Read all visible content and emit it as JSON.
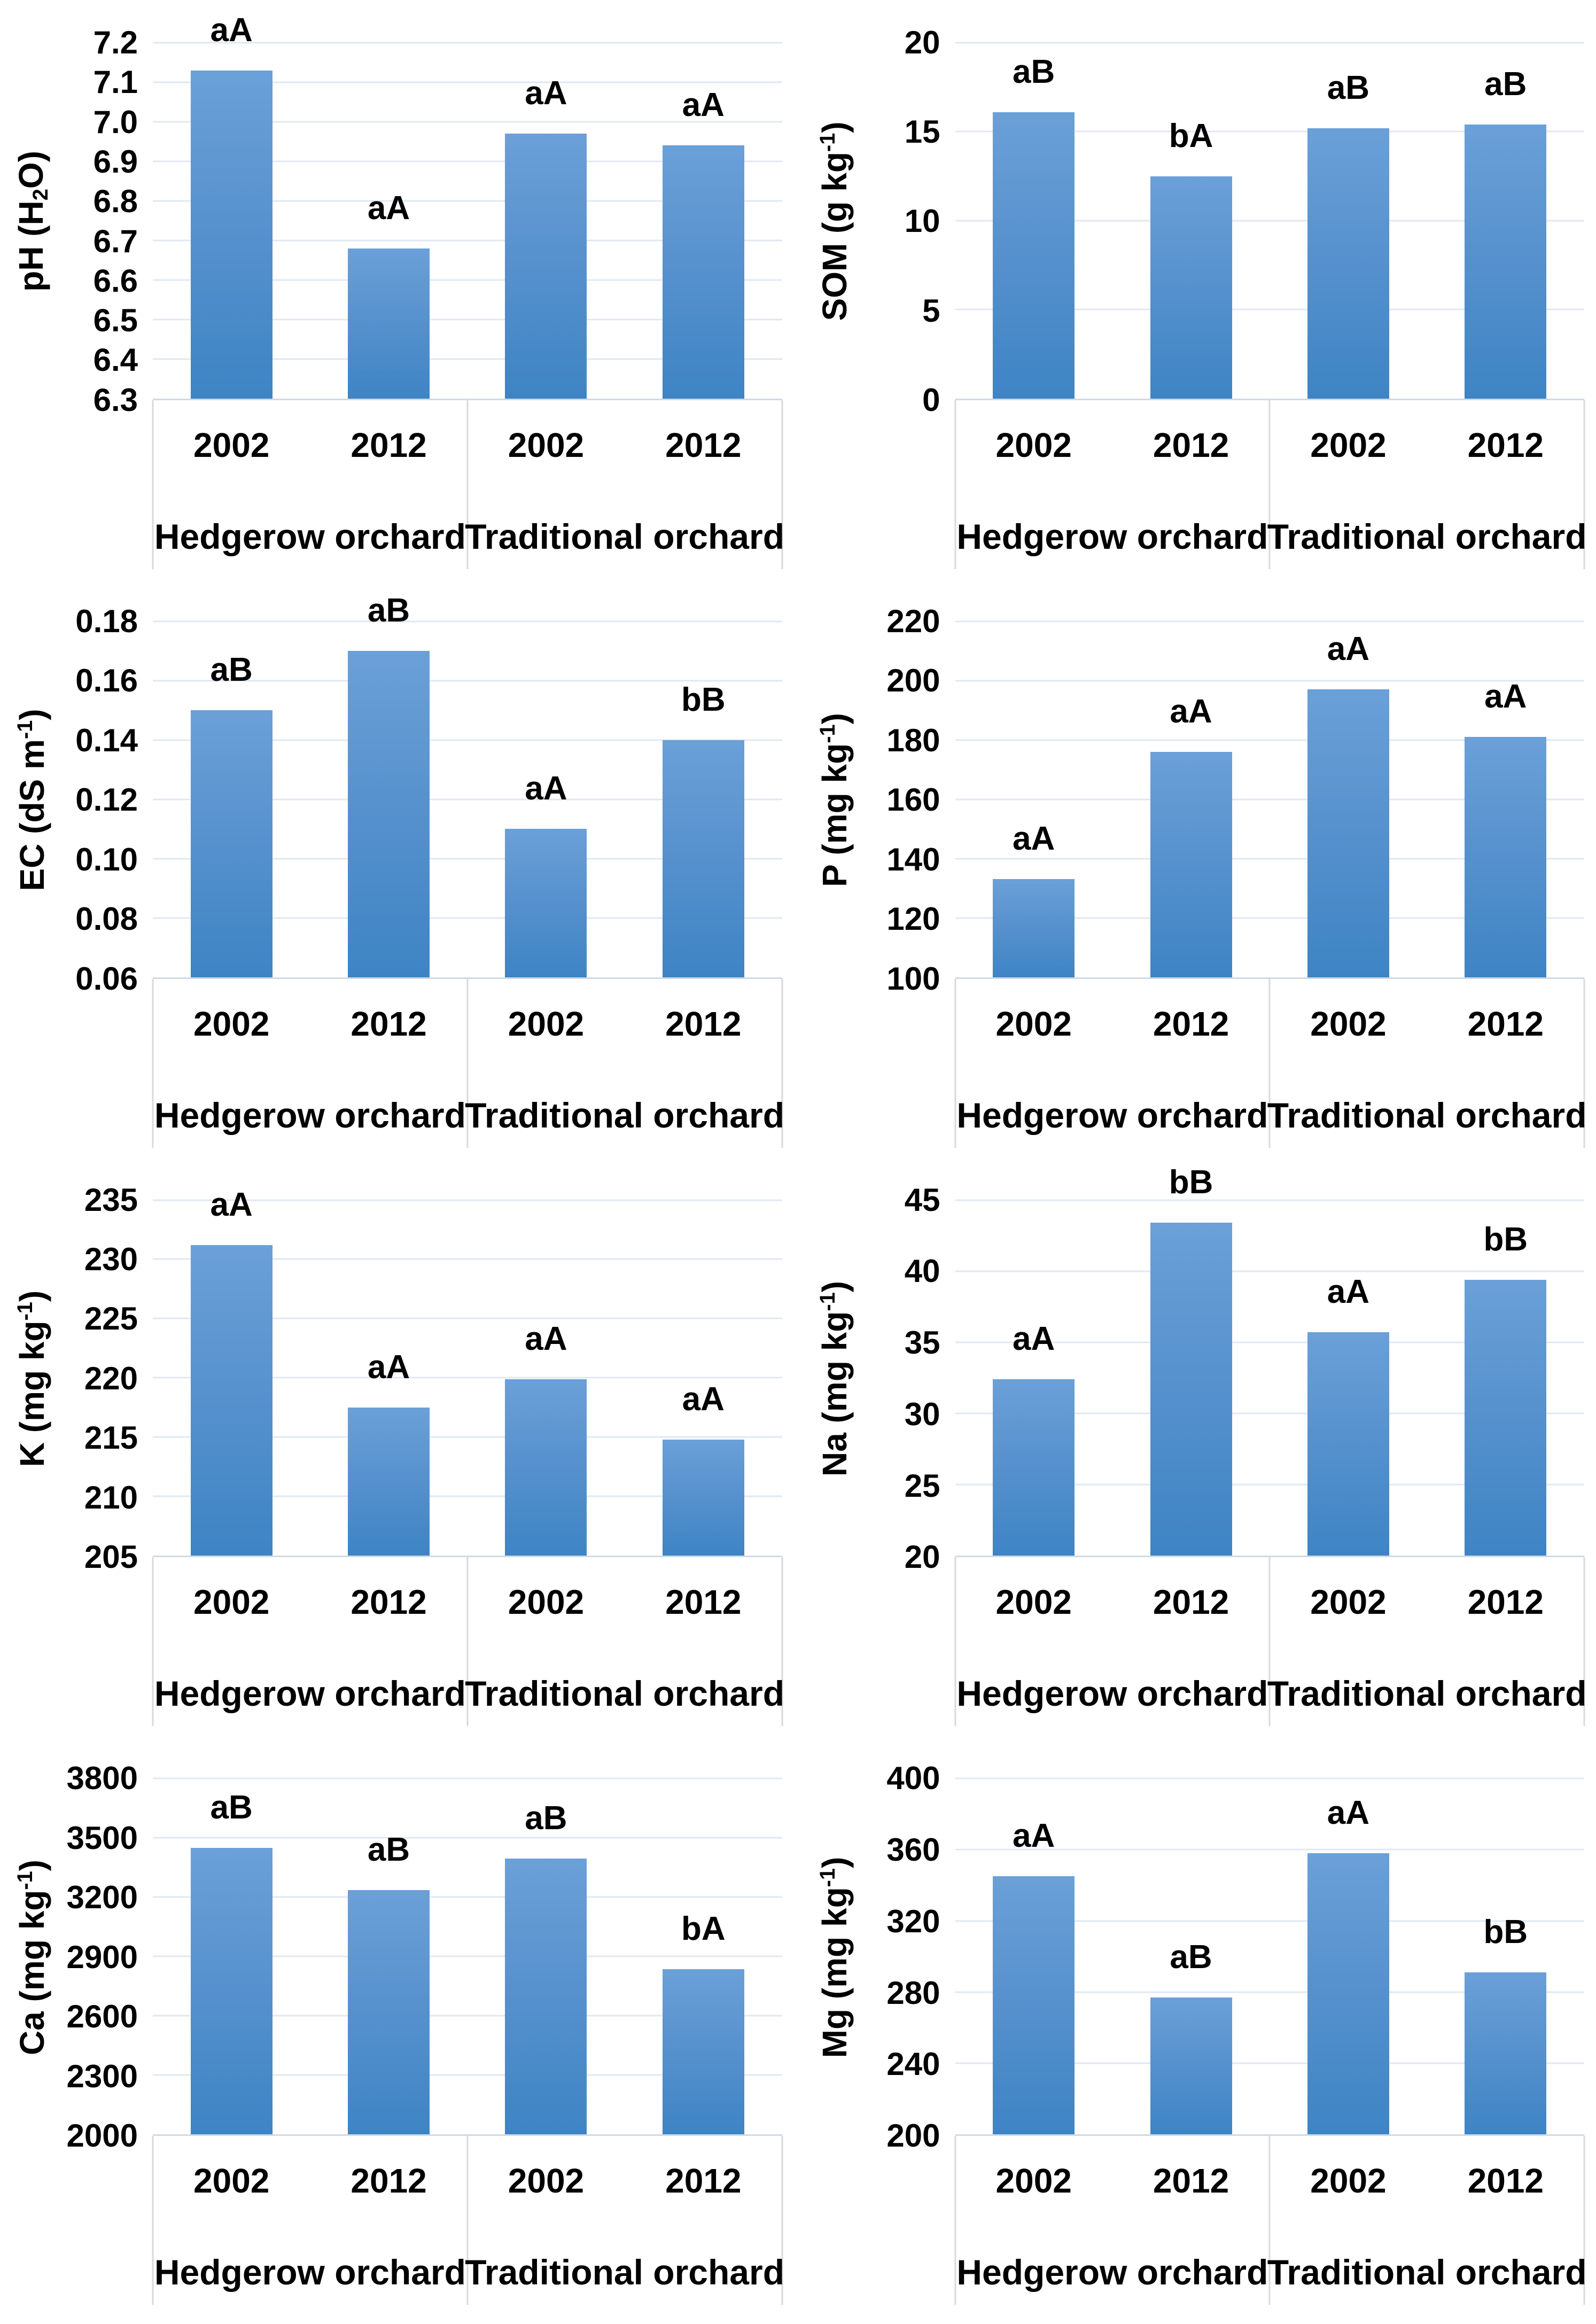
{
  "figure": {
    "description": "Soil chemical properties of hedgerow and traditional orchards in 2002 and 2012",
    "group_labels": [
      "Hedgerow orchard",
      "Traditional orchard"
    ],
    "year_labels": [
      "2002",
      "2012"
    ]
  },
  "style": {
    "bar_gradient_top": "#6BA0D8",
    "bar_gradient_bottom": "#3E84C4",
    "gridline_color": "#DFE8F3",
    "axis_line_color": "#CFDAE7",
    "category_border_color": "#D9D9D9",
    "text_color": "#000000"
  },
  "chart_data": [
    {
      "id": "ph",
      "type": "bar",
      "title": "",
      "ylabel_plain": "pH (H2O)",
      "ylabel_parts": [
        {
          "t": "pH (H"
        },
        {
          "t": "2",
          "s": "sub"
        },
        {
          "t": "O)"
        }
      ],
      "ylim": [
        6.3,
        7.2
      ],
      "yticks": [
        "7.2",
        "7.1",
        "7.0",
        "6.9",
        "6.8",
        "6.7",
        "6.6",
        "6.5",
        "6.4",
        "6.3"
      ],
      "grid": true,
      "legend_position": "none",
      "categories": [
        "Hedgerow orchard 2002",
        "Hedgerow orchard 2012",
        "Traditional orchard 2002",
        "Traditional orchard 2012"
      ],
      "x_year_labels": [
        "2002",
        "2012",
        "2002",
        "2012"
      ],
      "x_group_labels": [
        "Hedgerow orchard",
        "Traditional orchard"
      ],
      "values": [
        7.13,
        6.68,
        6.97,
        6.94
      ],
      "bar_labels": [
        "aA",
        "aA",
        "aA",
        "aA"
      ]
    },
    {
      "id": "som",
      "type": "bar",
      "title": "",
      "ylabel_plain": "SOM (g kg-1)",
      "ylabel_parts": [
        {
          "t": "SOM (g kg"
        },
        {
          "t": "-1",
          "s": "sup"
        },
        {
          "t": ")"
        }
      ],
      "ylim": [
        0,
        20
      ],
      "yticks": [
        "20",
        "15",
        "10",
        "5",
        "0"
      ],
      "grid": true,
      "legend_position": "none",
      "categories": [
        "Hedgerow orchard 2002",
        "Hedgerow orchard 2012",
        "Traditional orchard 2002",
        "Traditional orchard 2012"
      ],
      "x_year_labels": [
        "2002",
        "2012",
        "2002",
        "2012"
      ],
      "x_group_labels": [
        "Hedgerow orchard",
        "Traditional orchard"
      ],
      "values": [
        16.1,
        12.5,
        15.2,
        15.4
      ],
      "bar_labels": [
        "aB",
        "bA",
        "aB",
        "aB"
      ]
    },
    {
      "id": "ec",
      "type": "bar",
      "title": "",
      "ylabel_plain": "EC (dS m-1)",
      "ylabel_parts": [
        {
          "t": "EC (dS m"
        },
        {
          "t": "-1",
          "s": "sup"
        },
        {
          "t": ")"
        }
      ],
      "ylim": [
        0.06,
        0.18
      ],
      "yticks": [
        "0.18",
        "0.16",
        "0.14",
        "0.12",
        "0.10",
        "0.08",
        "0.06"
      ],
      "grid": true,
      "legend_position": "none",
      "categories": [
        "Hedgerow orchard 2002",
        "Hedgerow orchard 2012",
        "Traditional orchard 2002",
        "Traditional orchard 2012"
      ],
      "x_year_labels": [
        "2002",
        "2012",
        "2002",
        "2012"
      ],
      "x_group_labels": [
        "Hedgerow orchard",
        "Traditional orchard"
      ],
      "values": [
        0.15,
        0.17,
        0.11,
        0.14
      ],
      "bar_labels": [
        "aB",
        "aB",
        "aA",
        "bB"
      ]
    },
    {
      "id": "p",
      "type": "bar",
      "title": "",
      "ylabel_plain": "P (mg kg-1)",
      "ylabel_parts": [
        {
          "t": "P (mg kg"
        },
        {
          "t": "-1",
          "s": "sup"
        },
        {
          "t": ")"
        }
      ],
      "ylim": [
        100,
        220
      ],
      "yticks": [
        "220",
        "200",
        "180",
        "160",
        "140",
        "120",
        "100"
      ],
      "grid": true,
      "legend_position": "none",
      "categories": [
        "Hedgerow orchard 2002",
        "Hedgerow orchard 2012",
        "Traditional orchard 2002",
        "Traditional orchard 2012"
      ],
      "x_year_labels": [
        "2002",
        "2012",
        "2002",
        "2012"
      ],
      "x_group_labels": [
        "Hedgerow orchard",
        "Traditional orchard"
      ],
      "values": [
        133,
        176,
        197,
        181
      ],
      "bar_labels": [
        "aA",
        "aA",
        "aA",
        "aA"
      ]
    },
    {
      "id": "k",
      "type": "bar",
      "title": "",
      "ylabel_plain": "K (mg kg-1)",
      "ylabel_parts": [
        {
          "t": "K (mg kg"
        },
        {
          "t": "-1",
          "s": "sup"
        },
        {
          "t": ")"
        }
      ],
      "ylim": [
        205,
        235
      ],
      "yticks": [
        "235",
        "230",
        "225",
        "220",
        "215",
        "210",
        "205"
      ],
      "grid": true,
      "legend_position": "none",
      "categories": [
        "Hedgerow orchard 2002",
        "Hedgerow orchard 2012",
        "Traditional orchard 2002",
        "Traditional orchard 2012"
      ],
      "x_year_labels": [
        "2002",
        "2012",
        "2002",
        "2012"
      ],
      "x_group_labels": [
        "Hedgerow orchard",
        "Traditional orchard"
      ],
      "values": [
        231.2,
        217.5,
        219.9,
        214.8
      ],
      "bar_labels": [
        "aA",
        "aA",
        "aA",
        "aA"
      ]
    },
    {
      "id": "na",
      "type": "bar",
      "title": "",
      "ylabel_plain": "Na (mg kg-1)",
      "ylabel_parts": [
        {
          "t": "Na (mg kg"
        },
        {
          "t": "-1",
          "s": "sup"
        },
        {
          "t": ")"
        }
      ],
      "ylim": [
        20,
        45
      ],
      "yticks": [
        "45",
        "40",
        "35",
        "30",
        "25",
        "20"
      ],
      "grid": true,
      "legend_position": "none",
      "categories": [
        "Hedgerow orchard 2002",
        "Hedgerow orchard 2012",
        "Traditional orchard 2002",
        "Traditional orchard 2012"
      ],
      "x_year_labels": [
        "2002",
        "2012",
        "2002",
        "2012"
      ],
      "x_group_labels": [
        "Hedgerow orchard",
        "Traditional orchard"
      ],
      "values": [
        32.4,
        43.4,
        35.7,
        39.4
      ],
      "bar_labels": [
        "aA",
        "bB",
        "aA",
        "bB"
      ]
    },
    {
      "id": "ca",
      "type": "bar",
      "title": "",
      "ylabel_plain": "Ca (mg kg-1)",
      "ylabel_parts": [
        {
          "t": "Ca (mg kg"
        },
        {
          "t": "-1",
          "s": "sup"
        },
        {
          "t": ")"
        }
      ],
      "ylim": [
        2000,
        3800
      ],
      "yticks": [
        "3800",
        "3500",
        "3200",
        "2900",
        "2600",
        "2300",
        "2000"
      ],
      "grid": true,
      "legend_position": "none",
      "categories": [
        "Hedgerow orchard 2002",
        "Hedgerow orchard 2012",
        "Traditional orchard 2002",
        "Traditional orchard 2012"
      ],
      "x_year_labels": [
        "2002",
        "2012",
        "2002",
        "2012"
      ],
      "x_group_labels": [
        "Hedgerow orchard",
        "Traditional orchard"
      ],
      "values": [
        3450,
        3235,
        3395,
        2835
      ],
      "bar_labels": [
        "aB",
        "aB",
        "aB",
        "bA"
      ]
    },
    {
      "id": "mg",
      "type": "bar",
      "title": "",
      "ylabel_plain": "Mg (mg kg-1)",
      "ylabel_parts": [
        {
          "t": "Mg (mg kg"
        },
        {
          "t": "-1",
          "s": "sup"
        },
        {
          "t": ")"
        }
      ],
      "ylim": [
        200,
        400
      ],
      "yticks": [
        "400",
        "360",
        "320",
        "280",
        "240",
        "200"
      ],
      "grid": true,
      "legend_position": "none",
      "categories": [
        "Hedgerow orchard 2002",
        "Hedgerow orchard 2012",
        "Traditional orchard 2002",
        "Traditional orchard 2012"
      ],
      "x_year_labels": [
        "2002",
        "2012",
        "2002",
        "2012"
      ],
      "x_group_labels": [
        "Hedgerow orchard",
        "Traditional orchard"
      ],
      "values": [
        345,
        277,
        358,
        291
      ],
      "bar_labels": [
        "aA",
        "aB",
        "aA",
        "bB"
      ]
    }
  ]
}
